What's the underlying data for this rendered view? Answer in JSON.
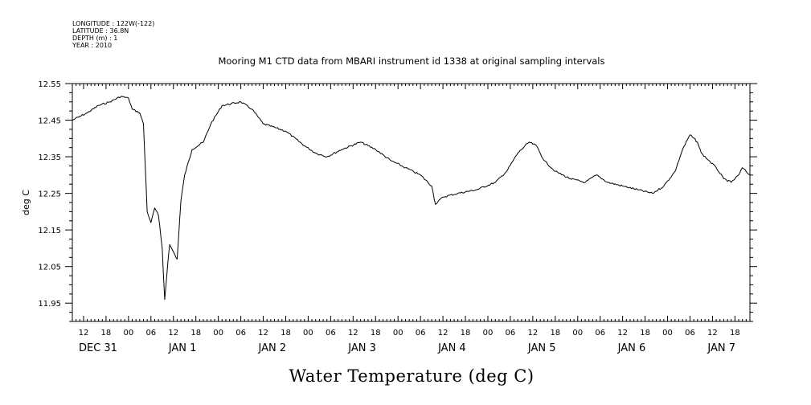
{
  "header": {
    "longitude": "LONGITUDE : 122W(-122)",
    "latitude": "LATITUDE : 36.8N",
    "depth": "DEPTH (m) : 1",
    "year": "YEAR : 2010"
  },
  "chart_data": {
    "type": "line",
    "title": "Mooring M1 CTD data from MBARI instrument id 1338 at original sampling intervals",
    "xlabel": "Water Temperature (deg C)",
    "ylabel": "deg C",
    "grid": false,
    "ylim": [
      11.9,
      12.55
    ],
    "xlim": [
      "2009-12-31T09:00",
      "2010-01-07T22:00"
    ],
    "yticks": [
      "12.55",
      "12.45",
      "12.35",
      "12.25",
      "12.15",
      "12.05",
      "11.95"
    ],
    "hour_ticks": [
      {
        "t": "2009-12-31T12:00",
        "label": "12"
      },
      {
        "t": "2009-12-31T18:00",
        "label": "18"
      },
      {
        "t": "2010-01-01T00:00",
        "label": "00"
      },
      {
        "t": "2010-01-01T06:00",
        "label": "06"
      },
      {
        "t": "2010-01-01T12:00",
        "label": "12"
      },
      {
        "t": "2010-01-01T18:00",
        "label": "18"
      },
      {
        "t": "2010-01-02T00:00",
        "label": "00"
      },
      {
        "t": "2010-01-02T06:00",
        "label": "06"
      },
      {
        "t": "2010-01-02T12:00",
        "label": "12"
      },
      {
        "t": "2010-01-02T18:00",
        "label": "18"
      },
      {
        "t": "2010-01-03T00:00",
        "label": "00"
      },
      {
        "t": "2010-01-03T06:00",
        "label": "06"
      },
      {
        "t": "2010-01-03T12:00",
        "label": "12"
      },
      {
        "t": "2010-01-03T18:00",
        "label": "18"
      },
      {
        "t": "2010-01-04T00:00",
        "label": "00"
      },
      {
        "t": "2010-01-04T06:00",
        "label": "06"
      },
      {
        "t": "2010-01-04T12:00",
        "label": "12"
      },
      {
        "t": "2010-01-04T18:00",
        "label": "18"
      },
      {
        "t": "2010-01-05T00:00",
        "label": "00"
      },
      {
        "t": "2010-01-05T06:00",
        "label": "06"
      },
      {
        "t": "2010-01-05T12:00",
        "label": "12"
      },
      {
        "t": "2010-01-05T18:00",
        "label": "18"
      },
      {
        "t": "2010-01-06T00:00",
        "label": "00"
      },
      {
        "t": "2010-01-06T06:00",
        "label": "06"
      },
      {
        "t": "2010-01-06T12:00",
        "label": "12"
      },
      {
        "t": "2010-01-06T18:00",
        "label": "18"
      },
      {
        "t": "2010-01-07T00:00",
        "label": "00"
      },
      {
        "t": "2010-01-07T06:00",
        "label": "06"
      },
      {
        "t": "2010-01-07T12:00",
        "label": "12"
      },
      {
        "t": "2010-01-07T18:00",
        "label": "18"
      }
    ],
    "date_labels": [
      {
        "t": "2009-12-31T12:00",
        "label": "DEC 31"
      },
      {
        "t": "2010-01-01T12:00",
        "label": "JAN  1"
      },
      {
        "t": "2010-01-02T12:00",
        "label": "JAN  2"
      },
      {
        "t": "2010-01-03T12:00",
        "label": "JAN  3"
      },
      {
        "t": "2010-01-04T12:00",
        "label": "JAN  4"
      },
      {
        "t": "2010-01-05T12:00",
        "label": "JAN  5"
      },
      {
        "t": "2010-01-06T12:00",
        "label": "JAN  6"
      },
      {
        "t": "2010-01-07T12:00",
        "label": "JAN  7"
      }
    ],
    "series": [
      {
        "points": [
          [
            "2009-12-31T09:00",
            12.45
          ],
          [
            "2009-12-31T11:00",
            12.46
          ],
          [
            "2009-12-31T13:00",
            12.47
          ],
          [
            "2009-12-31T16:00",
            12.49
          ],
          [
            "2009-12-31T19:00",
            12.5
          ],
          [
            "2009-12-31T22:00",
            12.515
          ],
          [
            "2010-01-01T00:00",
            12.51
          ],
          [
            "2010-01-01T01:00",
            12.48
          ],
          [
            "2010-01-01T03:00",
            12.47
          ],
          [
            "2010-01-01T04:00",
            12.44
          ],
          [
            "2010-01-01T05:00",
            12.2
          ],
          [
            "2010-01-01T06:00",
            12.17
          ],
          [
            "2010-01-01T07:00",
            12.21
          ],
          [
            "2010-01-01T08:00",
            12.19
          ],
          [
            "2010-01-01T09:00",
            12.1
          ],
          [
            "2010-01-01T09:40",
            11.96
          ],
          [
            "2010-01-01T10:30",
            12.06
          ],
          [
            "2010-01-01T11:00",
            12.11
          ],
          [
            "2010-01-01T12:00",
            12.09
          ],
          [
            "2010-01-01T13:00",
            12.07
          ],
          [
            "2010-01-01T14:00",
            12.23
          ],
          [
            "2010-01-01T15:00",
            12.3
          ],
          [
            "2010-01-01T17:00",
            12.37
          ],
          [
            "2010-01-01T20:00",
            12.39
          ],
          [
            "2010-01-01T22:00",
            12.44
          ],
          [
            "2010-01-02T01:00",
            12.49
          ],
          [
            "2010-01-02T06:00",
            12.5
          ],
          [
            "2010-01-02T09:00",
            12.48
          ],
          [
            "2010-01-02T12:00",
            12.44
          ],
          [
            "2010-01-02T18:00",
            12.42
          ],
          [
            "2010-01-02T23:00",
            12.38
          ],
          [
            "2010-01-03T02:00",
            12.36
          ],
          [
            "2010-01-03T05:00",
            12.35
          ],
          [
            "2010-01-03T09:00",
            12.37
          ],
          [
            "2010-01-03T14:00",
            12.39
          ],
          [
            "2010-01-03T18:00",
            12.37
          ],
          [
            "2010-01-03T22:00",
            12.34
          ],
          [
            "2010-01-04T02:00",
            12.32
          ],
          [
            "2010-01-04T06:00",
            12.3
          ],
          [
            "2010-01-04T09:00",
            12.27
          ],
          [
            "2010-01-04T10:00",
            12.22
          ],
          [
            "2010-01-04T12:00",
            12.24
          ],
          [
            "2010-01-04T16:00",
            12.25
          ],
          [
            "2010-01-04T21:00",
            12.26
          ],
          [
            "2010-01-05T02:00",
            12.28
          ],
          [
            "2010-01-05T05:00",
            12.31
          ],
          [
            "2010-01-05T08:00",
            12.36
          ],
          [
            "2010-01-05T11:00",
            12.39
          ],
          [
            "2010-01-05T13:00",
            12.38
          ],
          [
            "2010-01-05T15:00",
            12.34
          ],
          [
            "2010-01-05T18:00",
            12.31
          ],
          [
            "2010-01-05T22:00",
            12.29
          ],
          [
            "2010-01-06T02:00",
            12.28
          ],
          [
            "2010-01-06T05:00",
            12.3
          ],
          [
            "2010-01-06T08:00",
            12.28
          ],
          [
            "2010-01-06T12:00",
            12.27
          ],
          [
            "2010-01-06T16:00",
            12.26
          ],
          [
            "2010-01-06T20:00",
            12.25
          ],
          [
            "2010-01-06T23:00",
            12.27
          ],
          [
            "2010-01-07T02:00",
            12.31
          ],
          [
            "2010-01-07T04:00",
            12.37
          ],
          [
            "2010-01-07T06:00",
            12.41
          ],
          [
            "2010-01-07T08:00",
            12.39
          ],
          [
            "2010-01-07T09:00",
            12.36
          ],
          [
            "2010-01-07T11:00",
            12.34
          ],
          [
            "2010-01-07T13:00",
            12.32
          ],
          [
            "2010-01-07T15:00",
            12.29
          ],
          [
            "2010-01-07T17:00",
            12.28
          ],
          [
            "2010-01-07T19:00",
            12.3
          ],
          [
            "2010-01-07T20:00",
            12.32
          ],
          [
            "2010-01-07T22:00",
            12.3
          ]
        ]
      }
    ]
  }
}
